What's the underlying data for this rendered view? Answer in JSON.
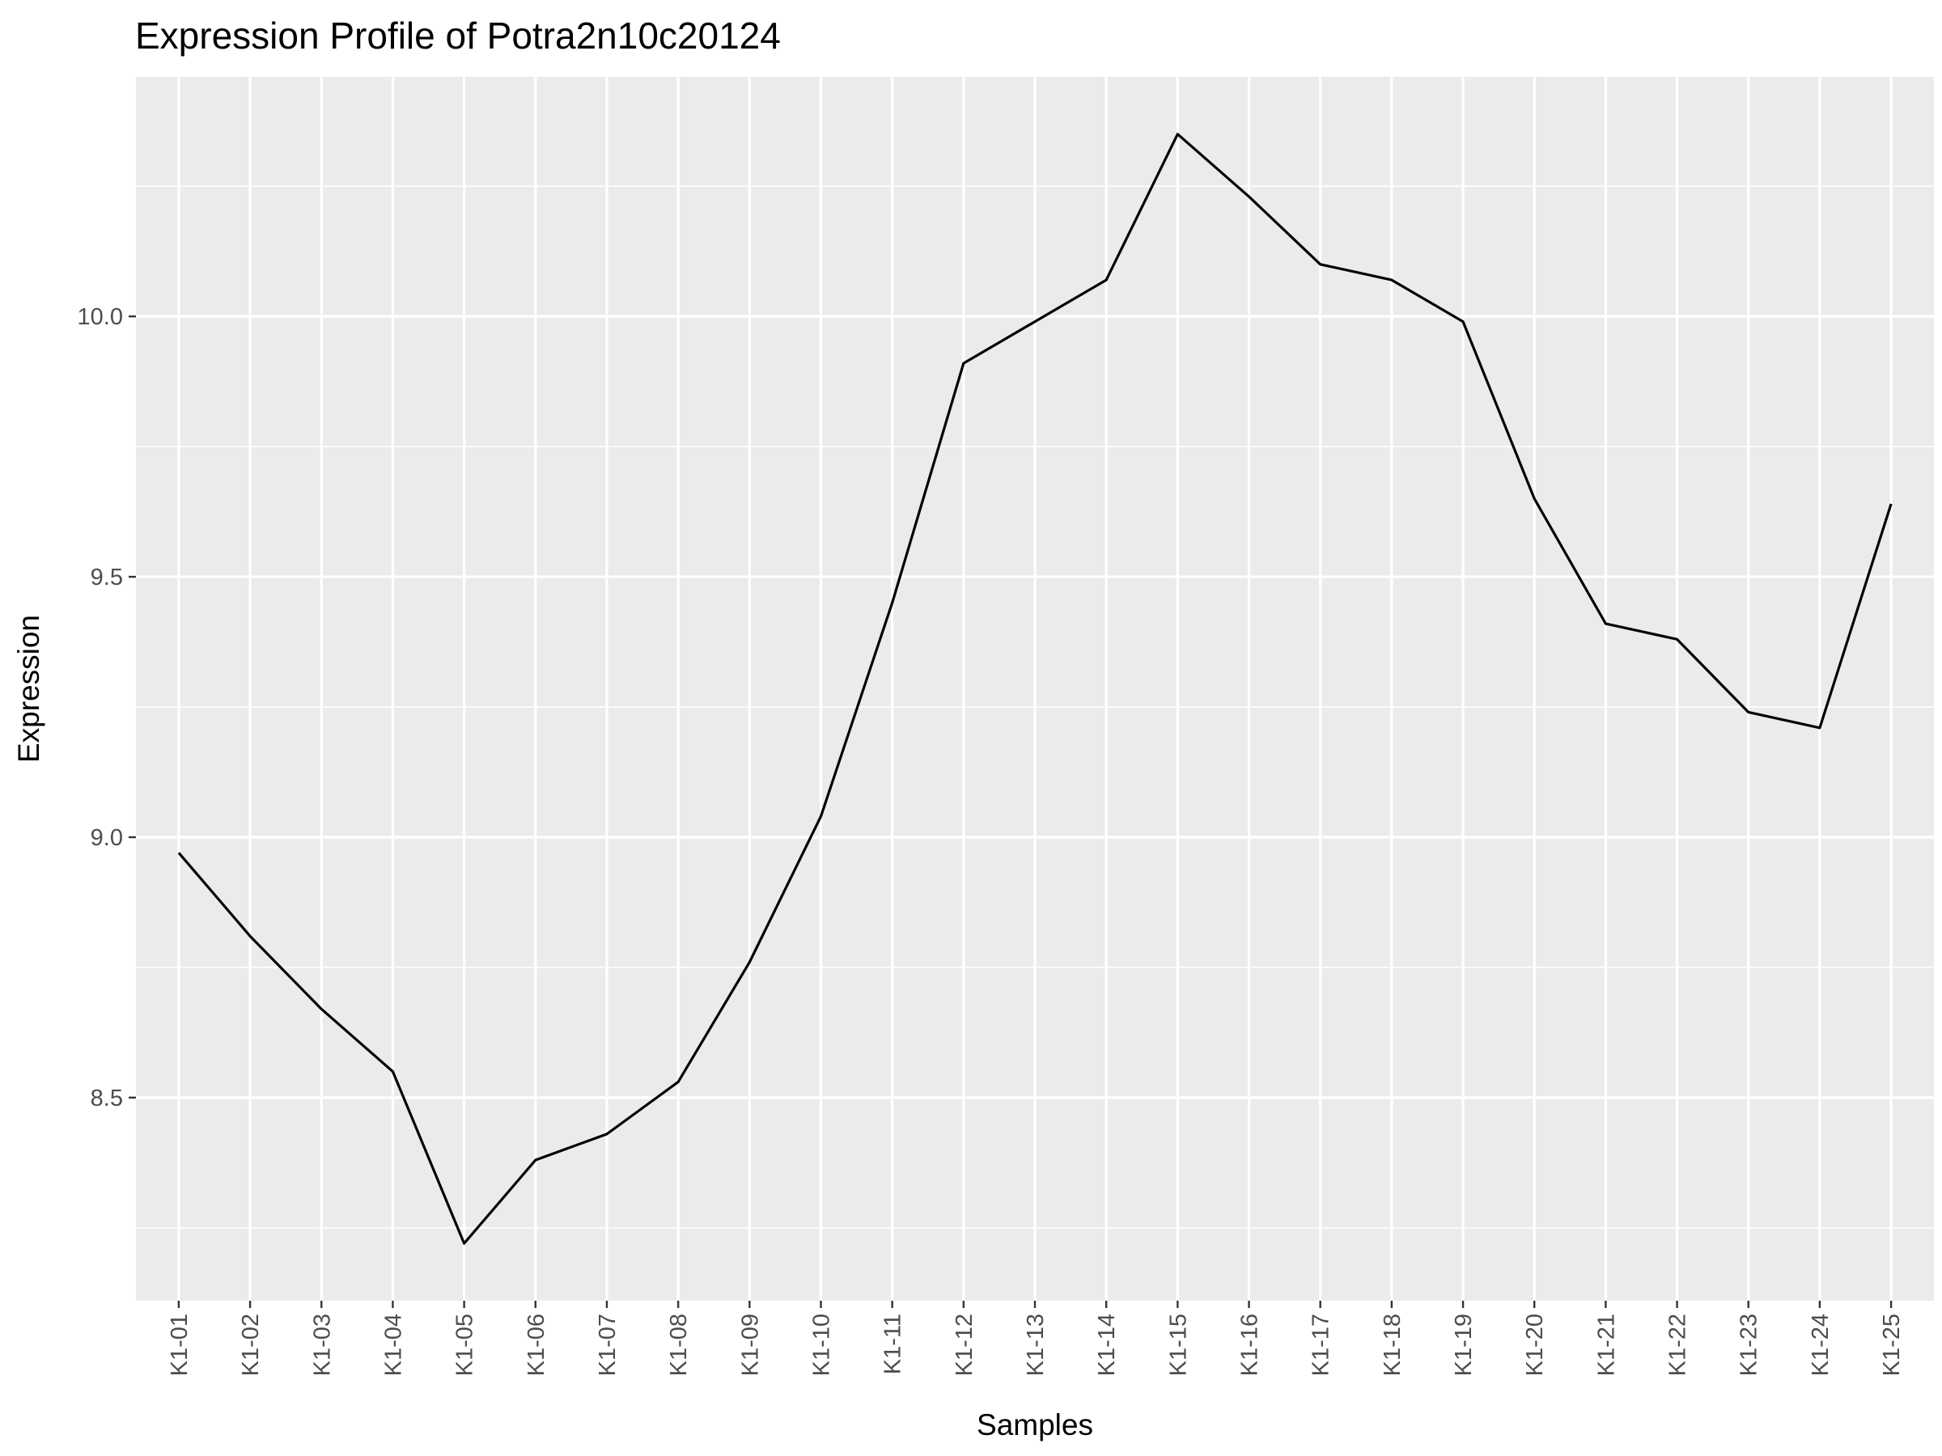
{
  "chart_data": {
    "type": "line",
    "title": "Expression Profile of Potra2n10c20124",
    "xlabel": "Samples",
    "ylabel": "Expression",
    "categories": [
      "K1-01",
      "K1-02",
      "K1-03",
      "K1-04",
      "K1-05",
      "K1-06",
      "K1-07",
      "K1-08",
      "K1-09",
      "K1-10",
      "K1-11",
      "K1-12",
      "K1-13",
      "K1-14",
      "K1-15",
      "K1-16",
      "K1-17",
      "K1-18",
      "K1-19",
      "K1-20",
      "K1-21",
      "K1-22",
      "K1-23",
      "K1-24",
      "K1-25"
    ],
    "series": [
      {
        "values": [
          8.97,
          8.81,
          8.67,
          8.55,
          8.22,
          8.38,
          8.43,
          8.53,
          8.76,
          9.04,
          9.45,
          9.91,
          9.99,
          10.07,
          10.35,
          10.23,
          10.1,
          10.07,
          9.99,
          9.65,
          9.41,
          9.38,
          9.24,
          9.21,
          9.64
        ],
        "color": "#000000"
      }
    ],
    "ylim": [
      8.11,
      10.46
    ],
    "yticks": [
      "8.5",
      "9.0",
      "9.5",
      "10.0"
    ],
    "grid": true,
    "legend": "none",
    "background": "#ebebeb",
    "grid_color": "#ffffff"
  }
}
